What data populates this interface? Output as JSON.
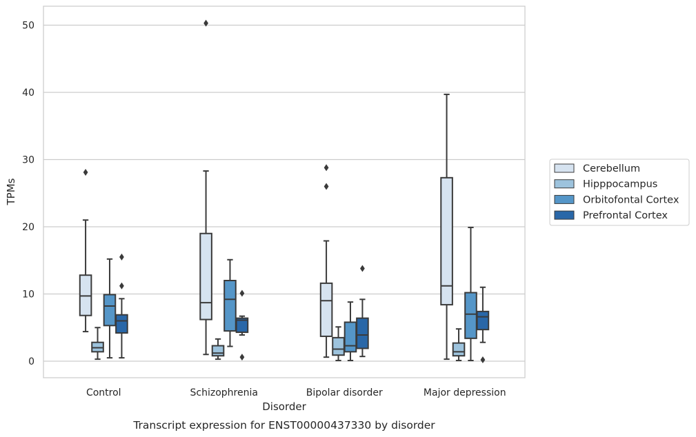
{
  "chart_data": {
    "type": "box",
    "xlabel": "Disorder",
    "ylabel": "TPMs",
    "caption": "Transcript expression for ENST00000437330 by disorder",
    "ylim": [
      -2.5,
      52.7
    ],
    "yticks": [
      0,
      10,
      20,
      30,
      40,
      50
    ],
    "grid": "horizontal",
    "legend_position": "right",
    "categories": [
      "Control",
      "Schizophrenia",
      "Bipolar disorder",
      "Major depression"
    ],
    "series": [
      {
        "name": "Cerebellum",
        "color": "#d6e3f0",
        "boxes": [
          {
            "whislo": 4.4,
            "q1": 6.8,
            "med": 9.7,
            "q3": 12.8,
            "whishi": 21.0,
            "fliers": [
              28.1
            ]
          },
          {
            "whislo": 1.0,
            "q1": 6.2,
            "med": 8.7,
            "q3": 19.0,
            "whishi": 28.3,
            "fliers": [
              50.3
            ]
          },
          {
            "whislo": 0.6,
            "q1": 3.7,
            "med": 9.0,
            "q3": 11.6,
            "whishi": 17.9,
            "fliers": [
              26.0,
              28.8
            ]
          },
          {
            "whislo": 0.3,
            "q1": 8.4,
            "med": 11.2,
            "q3": 27.3,
            "whishi": 39.7,
            "fliers": []
          }
        ]
      },
      {
        "name": "Hipppocampus",
        "color": "#9dc3dd",
        "boxes": [
          {
            "whislo": 0.3,
            "q1": 1.4,
            "med": 2.0,
            "q3": 2.8,
            "whishi": 5.0,
            "fliers": []
          },
          {
            "whislo": 0.3,
            "q1": 0.8,
            "med": 1.2,
            "q3": 2.3,
            "whishi": 3.3,
            "fliers": []
          },
          {
            "whislo": 0.1,
            "q1": 0.9,
            "med": 1.8,
            "q3": 3.5,
            "whishi": 5.1,
            "fliers": []
          },
          {
            "whislo": 0.1,
            "q1": 0.8,
            "med": 1.4,
            "q3": 2.7,
            "whishi": 4.8,
            "fliers": []
          }
        ]
      },
      {
        "name": "Orbitofontal Cortex",
        "color": "#5596c8",
        "boxes": [
          {
            "whislo": 0.5,
            "q1": 5.3,
            "med": 8.2,
            "q3": 9.9,
            "whishi": 15.2,
            "fliers": []
          },
          {
            "whislo": 2.2,
            "q1": 4.5,
            "med": 9.2,
            "q3": 12.0,
            "whishi": 15.1,
            "fliers": []
          },
          {
            "whislo": 0.1,
            "q1": 1.4,
            "med": 2.3,
            "q3": 5.8,
            "whishi": 8.8,
            "fliers": []
          },
          {
            "whislo": 0.1,
            "q1": 3.4,
            "med": 7.0,
            "q3": 10.2,
            "whishi": 19.9,
            "fliers": []
          }
        ]
      },
      {
        "name": "Prefrontal Cortex",
        "color": "#2967a8",
        "boxes": [
          {
            "whislo": 0.5,
            "q1": 4.2,
            "med": 6.0,
            "q3": 6.9,
            "whishi": 9.3,
            "fliers": [
              11.2,
              15.5
            ]
          },
          {
            "whislo": 3.9,
            "q1": 4.3,
            "med": 6.1,
            "q3": 6.4,
            "whishi": 6.7,
            "fliers": [
              0.6,
              10.1
            ]
          },
          {
            "whislo": 0.7,
            "q1": 1.9,
            "med": 3.9,
            "q3": 6.4,
            "whishi": 9.2,
            "fliers": [
              13.8
            ]
          },
          {
            "whislo": 2.8,
            "q1": 4.7,
            "med": 6.6,
            "q3": 7.4,
            "whishi": 11.0,
            "fliers": [
              0.2
            ]
          }
        ]
      }
    ]
  }
}
